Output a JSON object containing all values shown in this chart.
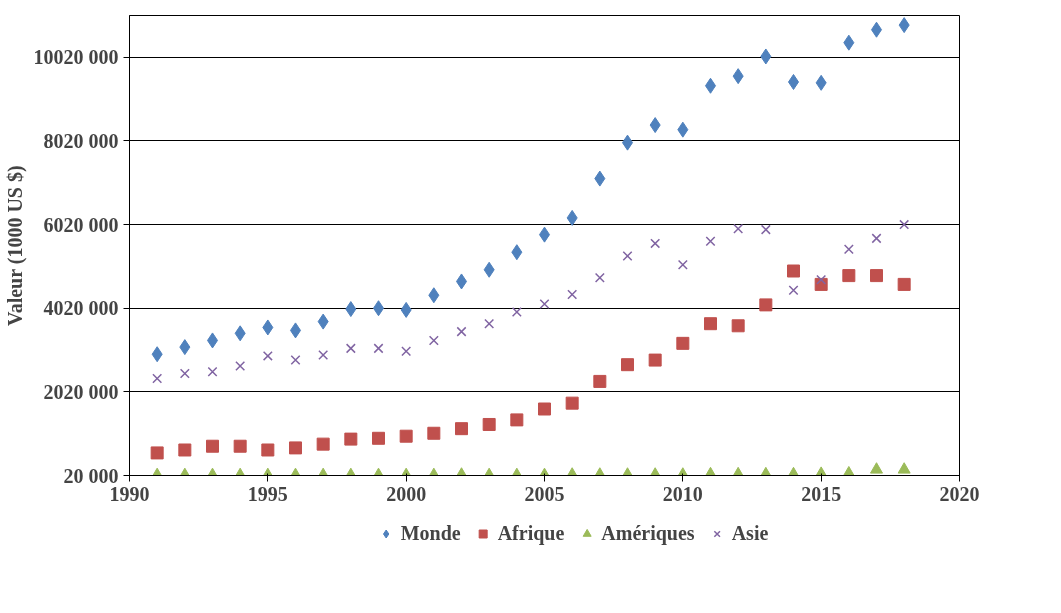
{
  "chart_data": {
    "type": "scatter",
    "ylabel": "Valeur (1000 US $)",
    "x": [
      1991,
      1992,
      1993,
      1994,
      1995,
      1996,
      1997,
      1998,
      1999,
      2000,
      2001,
      2002,
      2003,
      2004,
      2005,
      2006,
      2007,
      2008,
      2009,
      2010,
      2011,
      2012,
      2013,
      2014,
      2015,
      2016,
      2017,
      2018
    ],
    "series": [
      {
        "name": "Monde",
        "color": "#4f81bd",
        "marker": "diamond",
        "values": [
          2920000,
          3090000,
          3250000,
          3420000,
          3560000,
          3490000,
          3700000,
          4000000,
          4020000,
          3980000,
          4330000,
          4660000,
          4940000,
          5360000,
          5780000,
          6180000,
          7120000,
          7980000,
          8400000,
          8290000,
          9340000,
          9570000,
          10040000,
          9430000,
          9410000,
          10370000,
          10680000,
          10790000
        ]
      },
      {
        "name": "Afrique",
        "color": "#c0504d",
        "marker": "square",
        "values": [
          560000,
          630000,
          720000,
          720000,
          630000,
          680000,
          770000,
          890000,
          910000,
          960000,
          1030000,
          1140000,
          1240000,
          1350000,
          1610000,
          1750000,
          2270000,
          2670000,
          2780000,
          3180000,
          3650000,
          3600000,
          4100000,
          4910000,
          4590000,
          4800000,
          4800000,
          4590000
        ]
      },
      {
        "name": "Amériques",
        "color": "#9bbb59",
        "marker": "triangle",
        "values": [
          30000,
          30000,
          30000,
          30000,
          30000,
          30000,
          30000,
          30000,
          30000,
          30000,
          30000,
          40000,
          30000,
          30000,
          30000,
          40000,
          40000,
          40000,
          40000,
          40000,
          50000,
          50000,
          50000,
          50000,
          60000,
          70000,
          160000,
          160000
        ]
      },
      {
        "name": "Asie",
        "color": "#8064a2",
        "marker": "cross",
        "values": [
          2340000,
          2460000,
          2500000,
          2640000,
          2880000,
          2780000,
          2900000,
          3060000,
          3060000,
          2990000,
          3250000,
          3460000,
          3650000,
          3930000,
          4120000,
          4350000,
          4750000,
          5270000,
          5570000,
          5060000,
          5620000,
          5920000,
          5900000,
          4450000,
          4700000,
          5430000,
          5690000,
          6020000
        ]
      }
    ],
    "xlim": [
      1990,
      2020
    ],
    "xticks": [
      1990,
      1995,
      2000,
      2005,
      2010,
      2015,
      2020
    ],
    "ylim": [
      20000,
      11020000
    ],
    "yticks": [
      {
        "value": 20000,
        "label": "20 000"
      },
      {
        "value": 2020000,
        "label": "2020 000"
      },
      {
        "value": 4020000,
        "label": "4020 000"
      },
      {
        "value": 6020000,
        "label": "6020 000"
      },
      {
        "value": 8020000,
        "label": "8020 000"
      },
      {
        "value": 10020000,
        "label": "10020 000"
      }
    ],
    "grid": "y",
    "legend": "bottom"
  }
}
